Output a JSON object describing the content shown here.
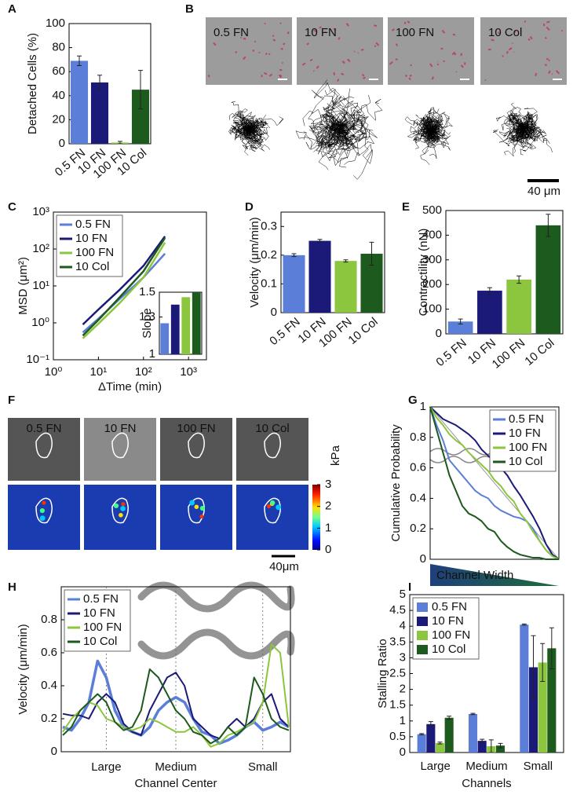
{
  "chart_data": [
    {
      "type": "bar",
      "panel": "A",
      "ylabel": "Detached Cells (%)",
      "categories": [
        "0.5 FN",
        "10 FN",
        "100 FN",
        "10 Col"
      ],
      "values": [
        69,
        51,
        1,
        45
      ],
      "errors": [
        4,
        6,
        1,
        16
      ],
      "colors": [
        "#5b7fd8",
        "#1b1a78",
        "#8cc63e",
        "#1d5a1d"
      ],
      "ylim": [
        0,
        100
      ],
      "yticks": [
        0,
        20,
        40,
        60,
        80,
        100
      ]
    },
    {
      "type": "line",
      "panel": "C",
      "ylabel": "MSD (μm²)",
      "xlabel": "ΔTime (min)",
      "log_x": true,
      "log_y": true,
      "x": [
        4.5,
        10,
        30,
        100,
        300
      ],
      "series": [
        {
          "name": "0.5 FN",
          "color": "#5b7fd8",
          "values": [
            0.55,
            1.3,
            4.5,
            17,
            75
          ]
        },
        {
          "name": "10 FN",
          "color": "#1b1a78",
          "values": [
            0.9,
            2.3,
            8,
            35,
            220
          ]
        },
        {
          "name": "100 FN",
          "color": "#8cc63e",
          "values": [
            0.38,
            0.95,
            3.5,
            17,
            150
          ]
        },
        {
          "name": "10 Col",
          "color": "#1d5a1d",
          "values": [
            0.45,
            1.2,
            5,
            25,
            200
          ]
        }
      ],
      "xlim": [
        1,
        2500
      ],
      "ylim": [
        0.1,
        1000
      ],
      "xticks": [
        {
          "value": 1,
          "label": "10⁰"
        },
        {
          "value": 10,
          "label": "10¹"
        },
        {
          "value": 100,
          "label": "10²"
        },
        {
          "value": 1000,
          "label": "10³"
        }
      ],
      "yticks": [
        {
          "value": 0.1,
          "label": "10⁻¹"
        },
        {
          "value": 1,
          "label": "10⁰"
        },
        {
          "value": 10,
          "label": "10¹"
        },
        {
          "value": 100,
          "label": "10²"
        },
        {
          "value": 1000,
          "label": "10³"
        }
      ],
      "legend": "upper left"
    },
    {
      "type": "bar",
      "ylabel": "Slope",
      "values": [
        1.25,
        1.4,
        1.46,
        1.5
      ],
      "colors": [
        "#5b7fd8",
        "#1b1a78",
        "#8cc63e",
        "#1d5a1d"
      ],
      "ylim": [
        1,
        1.5
      ],
      "yticks": [
        1,
        1.3,
        1.5
      ]
    },
    {
      "type": "bar",
      "panel": "D",
      "ylabel": "Velocity (μm/min)",
      "categories": [
        "0.5 FN",
        "10 FN",
        "100 FN",
        "10 Col"
      ],
      "values": [
        0.2,
        0.25,
        0.18,
        0.205
      ],
      "errors": [
        0.005,
        0.005,
        0.004,
        0.04
      ],
      "colors": [
        "#5b7fd8",
        "#1b1a78",
        "#8cc63e",
        "#1d5a1d"
      ],
      "ylim": [
        0,
        0.35
      ],
      "yticks": [
        0,
        0.1,
        0.2,
        0.3
      ]
    },
    {
      "type": "bar",
      "panel": "E",
      "ylabel": "Contractility (nN)",
      "categories": [
        "0.5 FN",
        "10 FN",
        "100 FN",
        "10 Col"
      ],
      "values": [
        50,
        175,
        220,
        440
      ],
      "errors": [
        10,
        12,
        15,
        45
      ],
      "colors": [
        "#5b7fd8",
        "#1b1a78",
        "#8cc63e",
        "#1d5a1d"
      ],
      "ylim": [
        0,
        500
      ],
      "yticks": [
        0,
        100,
        200,
        300,
        400,
        500
      ]
    },
    {
      "type": "line",
      "panel": "G",
      "ylabel": "Cumulative Probability",
      "xlabel": "Channel Width",
      "x": [
        0,
        0.05,
        0.1,
        0.15,
        0.2,
        0.25,
        0.3,
        0.35,
        0.4,
        0.45,
        0.5,
        0.55,
        0.6,
        0.65,
        0.7,
        0.75,
        0.8,
        0.85,
        0.9,
        0.95,
        1
      ],
      "series": [
        {
          "name": "0.5 FN",
          "color": "#5b7fd8",
          "values": [
            1,
            0.88,
            0.78,
            0.65,
            0.6,
            0.55,
            0.5,
            0.45,
            0.42,
            0.4,
            0.35,
            0.32,
            0.3,
            0.28,
            0.27,
            0.25,
            0.2,
            0.12,
            0.06,
            0.02,
            0
          ]
        },
        {
          "name": "10 FN",
          "color": "#1b1a78",
          "values": [
            1,
            0.96,
            0.92,
            0.9,
            0.88,
            0.85,
            0.82,
            0.78,
            0.72,
            0.68,
            0.65,
            0.6,
            0.55,
            0.48,
            0.42,
            0.35,
            0.28,
            0.2,
            0.1,
            0.03,
            0
          ]
        },
        {
          "name": "100 FN",
          "color": "#8cc63e",
          "values": [
            1,
            0.93,
            0.88,
            0.82,
            0.78,
            0.75,
            0.7,
            0.66,
            0.62,
            0.58,
            0.52,
            0.48,
            0.42,
            0.38,
            0.3,
            0.25,
            0.18,
            0.12,
            0.06,
            0.02,
            0
          ]
        },
        {
          "name": "10 Col",
          "color": "#1d5a1d",
          "values": [
            1,
            0.85,
            0.7,
            0.55,
            0.45,
            0.35,
            0.3,
            0.28,
            0.25,
            0.2,
            0.18,
            0.12,
            0.08,
            0.05,
            0.03,
            0.02,
            0.01,
            0.01,
            0,
            0,
            0
          ]
        }
      ],
      "xlim": [
        0,
        1
      ],
      "ylim": [
        0,
        1
      ],
      "yticks": [
        0,
        0.2,
        0.4,
        0.6,
        0.8,
        1
      ],
      "legend": "upper right"
    },
    {
      "type": "line",
      "panel": "H",
      "ylabel": "Velocity (μm/min)",
      "xlabel": "Channel Center",
      "categories": [
        null,
        null,
        null,
        null,
        null,
        "Large",
        null,
        null,
        null,
        null,
        null,
        null,
        null,
        "Medium",
        null,
        null,
        null,
        null,
        null,
        null,
        null,
        null,
        null,
        "Small",
        null,
        null,
        null
      ],
      "series": [
        {
          "name": "0.5 FN",
          "color": "#5b7fd8",
          "values": [
            0.15,
            0.13,
            0.2,
            0.3,
            0.55,
            0.45,
            0.25,
            0.15,
            0.12,
            0.1,
            0.15,
            0.25,
            0.3,
            0.33,
            0.3,
            0.2,
            0.12,
            0.1,
            0.05,
            0.07,
            0.1,
            0.15,
            0.18,
            0.13,
            0.15,
            0.18,
            0.15
          ]
        },
        {
          "name": "10 FN",
          "color": "#1b1a78",
          "values": [
            0.23,
            0.22,
            0.22,
            0.2,
            0.3,
            0.35,
            0.3,
            0.17,
            0.12,
            0.1,
            0.25,
            0.35,
            0.45,
            0.48,
            0.4,
            0.2,
            0.15,
            0.1,
            0.08,
            0.15,
            0.2,
            0.15,
            0.2,
            0.3,
            0.35,
            0.2,
            0.15
          ]
        },
        {
          "name": "100 FN",
          "color": "#8cc63e",
          "values": [
            0.12,
            0.2,
            0.25,
            0.3,
            0.28,
            0.2,
            0.18,
            0.15,
            0.13,
            0.15,
            0.2,
            0.18,
            0.15,
            0.12,
            0.12,
            0.15,
            0.1,
            0.03,
            0.05,
            0.1,
            0.12,
            0.15,
            0.18,
            0.3,
            0.65,
            0.6,
            0.15
          ]
        },
        {
          "name": "10 Col",
          "color": "#1d5a1d",
          "values": [
            0.1,
            0.15,
            0.25,
            0.3,
            0.35,
            0.3,
            0.18,
            0.13,
            0.15,
            0.25,
            0.5,
            0.45,
            0.35,
            0.25,
            0.2,
            0.12,
            0.1,
            0.05,
            0.08,
            0.15,
            0.1,
            0.15,
            0.45,
            0.35,
            0.2,
            0.15,
            0.13
          ]
        }
      ],
      "ylim": [
        0,
        1
      ],
      "yticks": [
        0,
        0.2,
        0.4,
        0.6,
        0.8
      ],
      "legend": "upper left",
      "xgrid": true
    },
    {
      "type": "bar",
      "panel": "I",
      "ylabel": "Stalling Ratio",
      "xlabel": "Channels",
      "categories": [
        "Large",
        "Medium",
        "Small"
      ],
      "series": [
        {
          "name": "0.5 FN",
          "color": "#5b7fd8",
          "values": [
            0.58,
            1.22,
            4.05
          ],
          "errors": [
            0.02,
            0.02,
            0.02
          ]
        },
        {
          "name": "10 FN",
          "color": "#1b1a78",
          "values": [
            0.9,
            0.37,
            2.7
          ],
          "errors": [
            0.08,
            0.05,
            1.0
          ]
        },
        {
          "name": "100 FN",
          "color": "#8cc63e",
          "values": [
            0.3,
            0.2,
            2.85
          ],
          "errors": [
            0.03,
            0.2,
            0.6
          ]
        },
        {
          "name": "10 Col",
          "color": "#1d5a1d",
          "values": [
            1.1,
            0.22,
            3.3
          ],
          "errors": [
            0.05,
            0.07,
            0.65
          ]
        }
      ],
      "ylim": [
        0,
        5
      ],
      "yticks": [
        0,
        0.5,
        1,
        1.5,
        2,
        2.5,
        3,
        3.5,
        4,
        4.5,
        5
      ],
      "legend": "upper left"
    }
  ],
  "images": [
    {
      "panel": "B",
      "labels": [
        "0.5 FN",
        "10 FN",
        "100 FN",
        "10 Col"
      ],
      "scale_bar": "40 μm"
    },
    {
      "panel": "F",
      "labels": [
        "0.5 FN",
        "10 FN",
        "100 FN",
        "10 Col"
      ],
      "colorbar_label": "kPa",
      "colorbar_lim": [
        0,
        3
      ],
      "colorbar_ticks": [
        0,
        1,
        2,
        3
      ],
      "scale_bar": "40μm"
    }
  ]
}
